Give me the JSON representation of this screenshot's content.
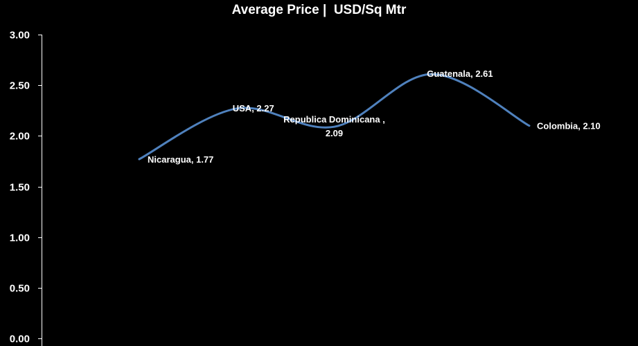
{
  "chart_data": {
    "type": "line",
    "title": "Average Price |  USD/Sq Mtr",
    "smooth": true,
    "categories": [
      "Nicaragua",
      "USA",
      "Republica Dominicana ",
      "Guatenala",
      "Colombia"
    ],
    "series": [
      {
        "values": [
          1.77,
          2.27,
          2.09,
          2.61,
          2.1
        ]
      }
    ],
    "data_labels": [
      [
        "Nicaragua, 1.77"
      ],
      [
        "USA, 2.27"
      ],
      [
        "Republica Dominicana ,",
        "2.09"
      ],
      [
        "Guatenala, 2.61"
      ],
      [
        "Colombia, 2.10"
      ]
    ],
    "y_ticks": [
      "0.00",
      "0.50",
      "1.00",
      "1.50",
      "2.00",
      "2.50",
      "3.00"
    ],
    "ylim": [
      0,
      3
    ],
    "xlabel": "",
    "ylabel": "",
    "grid": false,
    "legend": "none",
    "colors": {
      "background": "#000000",
      "line": "#4F81BD",
      "text": "#FFFFFF",
      "axis": "#FFFFFF"
    }
  }
}
